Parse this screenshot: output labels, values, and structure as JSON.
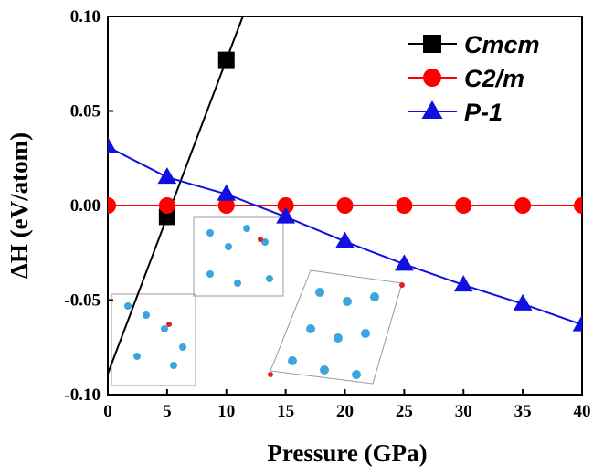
{
  "chart_data": {
    "type": "line",
    "x_label": "Pressure (GPa)",
    "y_label": "ΔH (eV/atom)",
    "xlim": [
      0,
      40
    ],
    "xticks": [
      0,
      5,
      10,
      15,
      20,
      25,
      30,
      35,
      40
    ],
    "ylim": [
      -0.1,
      0.1
    ],
    "yticks": [
      {
        "value": -0.1,
        "label": "-0.10"
      },
      {
        "value": -0.05,
        "label": "-0.05"
      },
      {
        "value": 0,
        "label": "0.00"
      },
      {
        "value": 0.05,
        "label": "0.05"
      },
      {
        "value": 0.1,
        "label": "0.10"
      }
    ],
    "legend": "top-right",
    "series": [
      {
        "name": "Cmcm",
        "color": "#000000",
        "marker": "square",
        "x": [
          5,
          10
        ],
        "values": [
          -0.006,
          0.077
        ]
      },
      {
        "name": "C2/m",
        "color": "#ff0000",
        "marker": "circle",
        "x": [
          0,
          5,
          10,
          15,
          20,
          25,
          30,
          35,
          40
        ],
        "values": [
          0,
          0,
          0,
          0,
          0,
          0,
          0,
          0,
          0
        ]
      },
      {
        "name": "P-1",
        "color": "#1010e0",
        "marker": "triangle",
        "x": [
          0,
          5,
          10,
          15,
          20,
          25,
          30,
          35,
          40
        ],
        "values": [
          0.031,
          0.015,
          0.006,
          -0.006,
          -0.019,
          -0.031,
          -0.042,
          -0.052,
          -0.063
        ]
      }
    ]
  }
}
